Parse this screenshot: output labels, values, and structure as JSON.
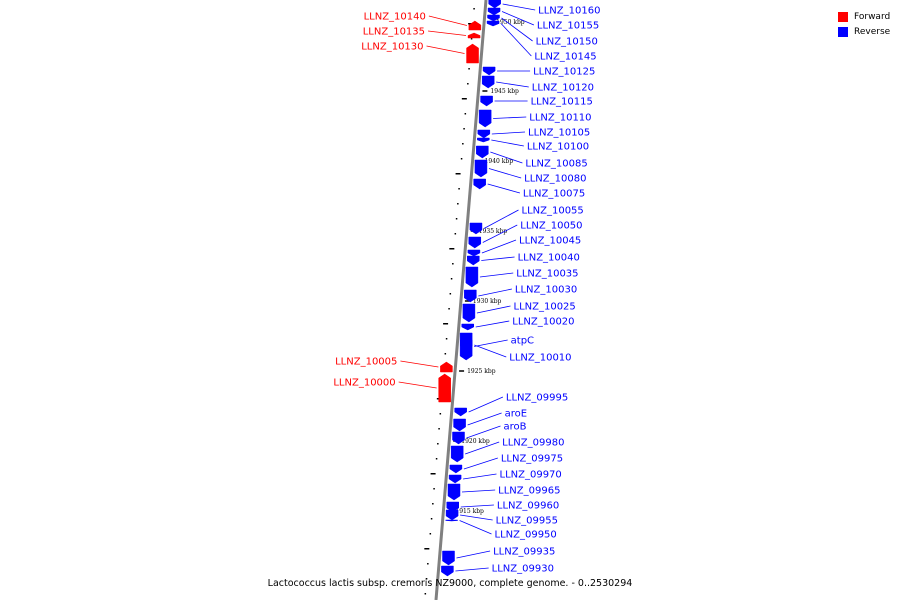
{
  "legend": [
    {
      "label": "Forward",
      "color": "#ff0000"
    },
    {
      "label": "Reverse",
      "color": "#0000ff"
    }
  ],
  "caption": "Lactococcus lactis subsp. cremoris NZ9000, complete genome. - 0..2530294",
  "colors": {
    "forward": "#ff0000",
    "reverse": "#0000ff",
    "backbone": "#808080"
  },
  "ticks": [
    "1950 kbp",
    "1945 kbp",
    "1940 kbp",
    "1935 kbp",
    "1930 kbp",
    "1925 kbp",
    "1920 kbp",
    "1915 kbp"
  ],
  "genes": [
    {
      "name": "LLNZ_10160",
      "strand": "reverse"
    },
    {
      "name": "LLNZ_10155",
      "strand": "reverse"
    },
    {
      "name": "LLNZ_10150",
      "strand": "reverse"
    },
    {
      "name": "LLNZ_10145",
      "strand": "reverse"
    },
    {
      "name": "LLNZ_10140",
      "strand": "forward"
    },
    {
      "name": "LLNZ_10135",
      "strand": "forward"
    },
    {
      "name": "LLNZ_10130",
      "strand": "forward"
    },
    {
      "name": "LLNZ_10125",
      "strand": "reverse"
    },
    {
      "name": "LLNZ_10120",
      "strand": "reverse"
    },
    {
      "name": "LLNZ_10115",
      "strand": "reverse"
    },
    {
      "name": "LLNZ_10110",
      "strand": "reverse"
    },
    {
      "name": "LLNZ_10105",
      "strand": "reverse"
    },
    {
      "name": "LLNZ_10100",
      "strand": "reverse"
    },
    {
      "name": "LLNZ_10085",
      "strand": "reverse"
    },
    {
      "name": "LLNZ_10080",
      "strand": "reverse"
    },
    {
      "name": "LLNZ_10075",
      "strand": "reverse"
    },
    {
      "name": "LLNZ_10055",
      "strand": "reverse"
    },
    {
      "name": "LLNZ_10050",
      "strand": "reverse"
    },
    {
      "name": "LLNZ_10045",
      "strand": "reverse"
    },
    {
      "name": "LLNZ_10040",
      "strand": "reverse"
    },
    {
      "name": "LLNZ_10035",
      "strand": "reverse"
    },
    {
      "name": "LLNZ_10030",
      "strand": "reverse"
    },
    {
      "name": "LLNZ_10025",
      "strand": "reverse"
    },
    {
      "name": "LLNZ_10020",
      "strand": "reverse"
    },
    {
      "name": "atpC",
      "strand": "reverse"
    },
    {
      "name": "LLNZ_10010",
      "strand": "reverse"
    },
    {
      "name": "LLNZ_10005",
      "strand": "forward"
    },
    {
      "name": "LLNZ_10000",
      "strand": "forward"
    },
    {
      "name": "LLNZ_09995",
      "strand": "reverse"
    },
    {
      "name": "aroE",
      "strand": "reverse"
    },
    {
      "name": "aroB",
      "strand": "reverse"
    },
    {
      "name": "LLNZ_09980",
      "strand": "reverse"
    },
    {
      "name": "LLNZ_09975",
      "strand": "reverse"
    },
    {
      "name": "LLNZ_09970",
      "strand": "reverse"
    },
    {
      "name": "LLNZ_09965",
      "strand": "reverse"
    },
    {
      "name": "LLNZ_09960",
      "strand": "reverse"
    },
    {
      "name": "LLNZ_09955",
      "strand": "reverse"
    },
    {
      "name": "LLNZ_09950",
      "strand": "reverse"
    },
    {
      "name": "LLNZ_09935",
      "strand": "reverse"
    },
    {
      "name": "LLNZ_09930",
      "strand": "reverse"
    }
  ]
}
